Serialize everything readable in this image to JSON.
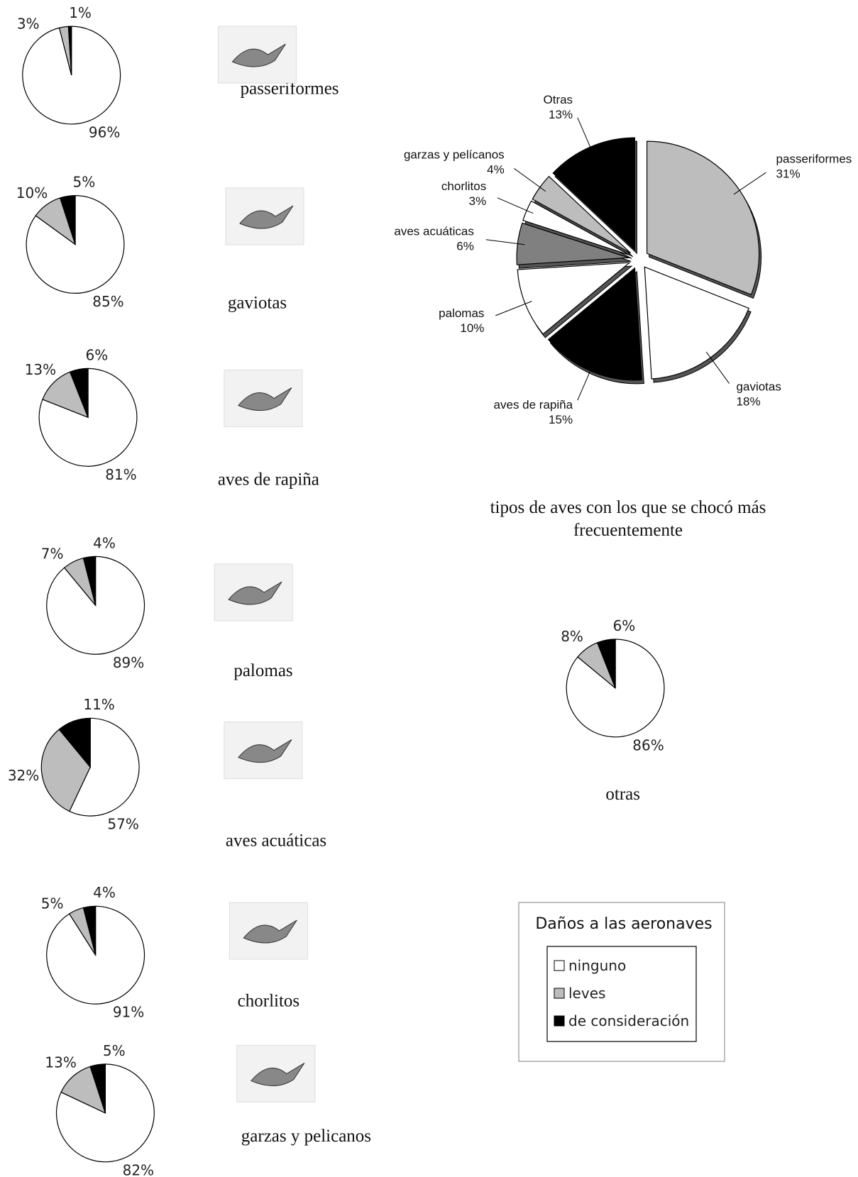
{
  "chart_data": [
    {
      "type": "pie",
      "title": "passeriformes",
      "values": [
        96,
        3,
        1
      ],
      "value_labels": [
        "96%",
        "3%",
        "1%"
      ]
    },
    {
      "type": "pie",
      "title": "gaviotas",
      "values": [
        85,
        10,
        5
      ],
      "value_labels": [
        "85%",
        "10%",
        "5%"
      ]
    },
    {
      "type": "pie",
      "title": "aves de rapiña",
      "values": [
        81,
        13,
        6
      ],
      "value_labels": [
        "81%",
        "13%",
        "6%"
      ]
    },
    {
      "type": "pie",
      "title": "palomas",
      "values": [
        89,
        7,
        4
      ],
      "value_labels": [
        "89%",
        "7%",
        "4%"
      ]
    },
    {
      "type": "pie",
      "title": "aves acuáticas",
      "values": [
        57,
        32,
        11
      ],
      "value_labels": [
        "57%",
        "32%",
        "11%"
      ]
    },
    {
      "type": "pie",
      "title": "chorlitos",
      "values": [
        91,
        5,
        4
      ],
      "value_labels": [
        "91%",
        "5%",
        "4%"
      ]
    },
    {
      "type": "pie",
      "title": "garzas y pelicanos",
      "values": [
        82,
        13,
        5
      ],
      "value_labels": [
        "82%",
        "13%",
        "5%"
      ]
    },
    {
      "type": "pie",
      "title": "otras",
      "values": [
        86,
        8,
        6
      ],
      "value_labels": [
        "86%",
        "8%",
        "6%"
      ]
    },
    {
      "type": "exploded-pie",
      "title": "tipos de aves con los que se chocó más frecuentemente",
      "categories": [
        "passeriformes",
        "gaviotas",
        "aves de rapiña",
        "palomas",
        "aves acuáticas",
        "chorlitos",
        "garzas y pelícanos",
        "Otras"
      ],
      "values": [
        31,
        18,
        15,
        10,
        6,
        3,
        4,
        13
      ],
      "value_labels": [
        "31%",
        "18%",
        "15%",
        "10%",
        "6%",
        "3%",
        "4%",
        "13%"
      ],
      "colors": [
        "#bdbdbd",
        "#ffffff",
        "#000000",
        "#ffffff",
        "#808080",
        "#ffffff",
        "#bdbdbd",
        "#000000"
      ]
    }
  ],
  "legend": {
    "title": "Daños a las aeronaves",
    "items": [
      "ninguno",
      "leves",
      "de consideración"
    ],
    "colors": [
      "#ffffff",
      "#bdbdbd",
      "#000000"
    ]
  }
}
